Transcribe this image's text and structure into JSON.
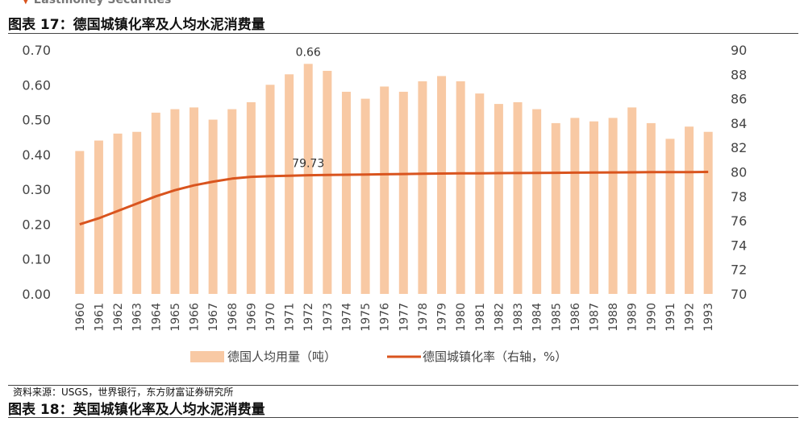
{
  "header": {
    "brand": "Eastmoney Securities"
  },
  "figure17": {
    "title": "图表 17：德国城镇化率及人均水泥消费量"
  },
  "figure18": {
    "title": "图表 18：英国城镇化率及人均水泥消费量"
  },
  "source": "资料来源：USGS，世界银行，东方财富证券研究所",
  "chart_data": {
    "type": "bar+line",
    "categories": [
      "1960",
      "1961",
      "1962",
      "1963",
      "1964",
      "1965",
      "1966",
      "1967",
      "1968",
      "1969",
      "1970",
      "1971",
      "1972",
      "1973",
      "1974",
      "1975",
      "1976",
      "1977",
      "1978",
      "1979",
      "1980",
      "1981",
      "1982",
      "1983",
      "1984",
      "1985",
      "1986",
      "1987",
      "1988",
      "1989",
      "1990",
      "1991",
      "1992",
      "1993"
    ],
    "series": [
      {
        "name": "德国人均用量（吨）",
        "kind": "bar",
        "axis": "left",
        "color": "#f8c9a4",
        "values": [
          0.41,
          0.44,
          0.46,
          0.465,
          0.52,
          0.53,
          0.535,
          0.5,
          0.53,
          0.55,
          0.6,
          0.63,
          0.66,
          0.64,
          0.58,
          0.56,
          0.595,
          0.58,
          0.61,
          0.625,
          0.61,
          0.575,
          0.545,
          0.55,
          0.53,
          0.49,
          0.505,
          0.495,
          0.505,
          0.535,
          0.49,
          0.445,
          0.48,
          0.465
        ]
      },
      {
        "name": "德国城镇化率（右轴，%）",
        "kind": "line",
        "axis": "right",
        "color": "#d9541e",
        "values": [
          75.7,
          76.2,
          76.8,
          77.4,
          78.0,
          78.5,
          78.9,
          79.2,
          79.45,
          79.6,
          79.65,
          79.68,
          79.73,
          79.75,
          79.77,
          79.79,
          79.81,
          79.83,
          79.85,
          79.87,
          79.88,
          79.89,
          79.9,
          79.91,
          79.92,
          79.93,
          79.94,
          79.95,
          79.96,
          79.97,
          79.98,
          79.98,
          79.99,
          80.0
        ]
      }
    ],
    "left_axis": {
      "min": 0,
      "max": 0.7,
      "ticks": [
        "0.00",
        "0.10",
        "0.20",
        "0.30",
        "0.40",
        "0.50",
        "0.60",
        "0.70"
      ]
    },
    "right_axis": {
      "min": 70,
      "max": 90,
      "ticks": [
        "70",
        "72",
        "74",
        "76",
        "78",
        "80",
        "82",
        "84",
        "86",
        "88",
        "90"
      ]
    },
    "annotations": [
      {
        "text": "0.66",
        "series": 0,
        "index": 12
      },
      {
        "text": "79.73",
        "series": 1,
        "index": 12
      }
    ],
    "legend_position": "bottom"
  }
}
